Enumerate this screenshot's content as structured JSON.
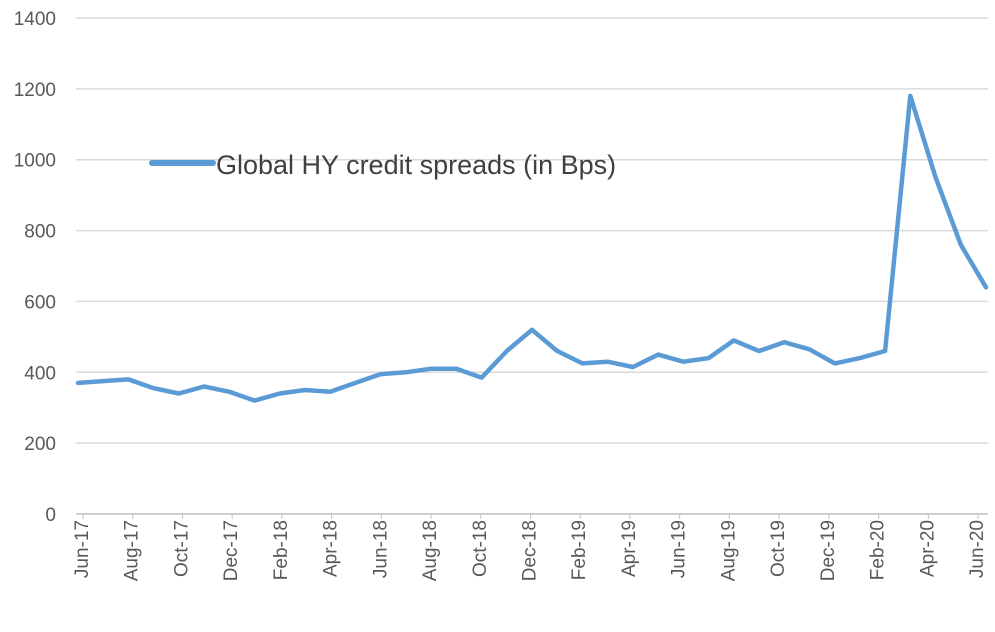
{
  "chart_data": {
    "type": "line",
    "title": "",
    "xlabel": "",
    "ylabel": "",
    "ylim": [
      0,
      1400
    ],
    "y_ticks": [
      0,
      200,
      400,
      600,
      800,
      1000,
      1200,
      1400
    ],
    "x_tick_labels": [
      "Jun-17",
      "Aug-17",
      "Oct-17",
      "Dec-17",
      "Feb-18",
      "Apr-18",
      "Jun-18",
      "Aug-18",
      "Oct-18",
      "Dec-18",
      "Feb-19",
      "Apr-19",
      "Jun-19",
      "Aug-19",
      "Oct-19",
      "Dec-19",
      "Feb-20",
      "Apr-20",
      "Jun-20"
    ],
    "grid": "horizontal",
    "legend": {
      "position": "upper-left-inside",
      "label": "Global HY credit spreads (in Bps)"
    },
    "colors": {
      "series": "#5b9bd5",
      "grid": "#d9d9d9",
      "axis": "#bfbfbf",
      "text": "#595959"
    },
    "series": [
      {
        "name": "Global HY credit spreads (in Bps)",
        "x": [
          "Jun-17",
          "Jul-17",
          "Aug-17",
          "Sep-17",
          "Oct-17",
          "Nov-17",
          "Dec-17",
          "Jan-18",
          "Feb-18",
          "Mar-18",
          "Apr-18",
          "May-18",
          "Jun-18",
          "Jul-18",
          "Aug-18",
          "Sep-18",
          "Oct-18",
          "Nov-18",
          "Dec-18",
          "Jan-19",
          "Feb-19",
          "Mar-19",
          "Apr-19",
          "May-19",
          "Jun-19",
          "Jul-19",
          "Aug-19",
          "Sep-19",
          "Oct-19",
          "Nov-19",
          "Dec-19",
          "Jan-20",
          "Feb-20",
          "Mar-20",
          "Apr-20",
          "May-20",
          "Jun-20"
        ],
        "values": [
          370,
          375,
          380,
          355,
          340,
          360,
          345,
          320,
          340,
          350,
          345,
          370,
          395,
          400,
          410,
          410,
          385,
          460,
          520,
          460,
          425,
          430,
          415,
          450,
          430,
          440,
          490,
          460,
          485,
          465,
          425,
          440,
          460,
          1180,
          950,
          760,
          640
        ]
      }
    ]
  }
}
